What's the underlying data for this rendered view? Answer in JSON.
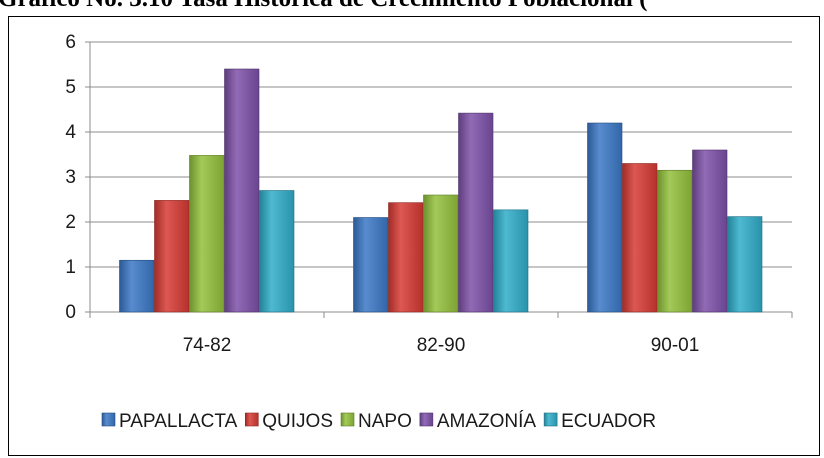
{
  "page": {
    "title": "Gráfico No. 3.10 Tasa Histórica de Crecimiento Poblacional ("
  },
  "chart_data": {
    "type": "bar",
    "categories": [
      "74-82",
      "82-90",
      "90-01"
    ],
    "series": [
      {
        "name": "PAPALLACTA",
        "values": [
          1.15,
          2.1,
          4.2
        ],
        "color": "#3a78c6"
      },
      {
        "name": "QUIJOS",
        "values": [
          2.48,
          2.43,
          3.3
        ],
        "color": "#d73a34"
      },
      {
        "name": "NAPO",
        "values": [
          3.48,
          2.6,
          3.15
        ],
        "color": "#93c13c"
      },
      {
        "name": "AMAZONÍA",
        "values": [
          5.4,
          4.42,
          3.6
        ],
        "color": "#7d51a8"
      },
      {
        "name": "ECUADOR",
        "values": [
          2.7,
          2.27,
          2.12
        ],
        "color": "#2fadc9"
      }
    ],
    "ylim": [
      0,
      6
    ],
    "yticks": [
      "0",
      "1",
      "2",
      "3",
      "4",
      "5",
      "6"
    ],
    "grid": true,
    "legend": "bottom"
  }
}
